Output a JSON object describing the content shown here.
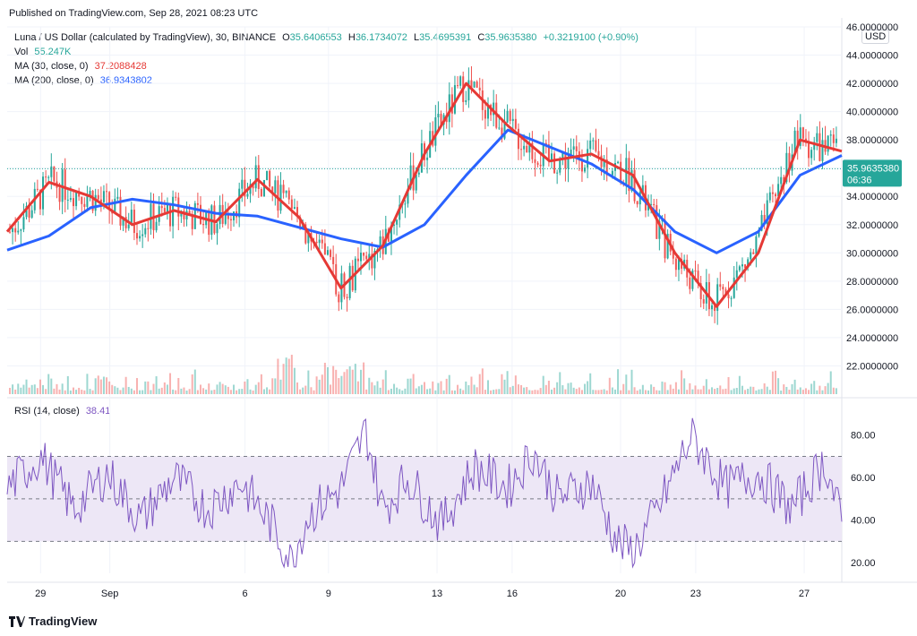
{
  "header": {
    "published": "Published on TradingView.com, Sep 28, 2021 08:23 UTC"
  },
  "legend": {
    "symbol": "Luna / US Dollar (calculated by TradingView), 30, BINANCE",
    "o_label": "O",
    "o": "35.6406553",
    "h_label": "H",
    "h": "36.1734072",
    "l_label": "L",
    "l": "35.4695391",
    "c_label": "C",
    "c": "35.9635380",
    "change": "+0.3219100 (+0.90%)",
    "vol_label": "Vol",
    "vol": "55.247K",
    "ma30_label": "MA (30, close, 0)",
    "ma30": "37.2088428",
    "ma200_label": "MA (200, close, 0)",
    "ma200": "36.9343802",
    "rsi_label": "RSI (14, close)",
    "rsi": "38.41"
  },
  "currency": "USD",
  "price_tag": {
    "value": "35.9635380",
    "countdown": "06:36"
  },
  "footer": {
    "brand": "TradingView"
  },
  "colors": {
    "up": "#26a69a",
    "down": "#ef5350",
    "ma30": "#e53935",
    "ma200": "#2962ff",
    "rsi": "#7e57c2",
    "rsi_band": "#ede7f6",
    "tag": "#26a69a"
  },
  "chart_data": [
    {
      "type": "line",
      "title": "Luna / US Dollar (calculated by TradingView), 30, BINANCE",
      "ylim": [
        20,
        46
      ],
      "y_ticks": [
        "46.0000000",
        "44.0000000",
        "42.0000000",
        "40.0000000",
        "38.0000000",
        "36.0000000",
        "34.0000000",
        "32.0000000",
        "30.0000000",
        "28.0000000",
        "26.0000000",
        "24.0000000",
        "22.0000000"
      ],
      "x_ticks": [
        "29",
        "Sep",
        "6",
        "9",
        "13",
        "16",
        "20",
        "23",
        "27"
      ],
      "series": [
        {
          "name": "MA (30, close, 0)",
          "x": [
            0,
            5,
            10,
            15,
            20,
            25,
            30,
            35,
            40,
            45,
            50,
            55,
            60,
            65,
            70,
            75,
            80,
            85,
            90,
            95,
            100
          ],
          "values": [
            31.5,
            35.0,
            34.0,
            32.0,
            33.0,
            32.2,
            35.2,
            32.5,
            27.5,
            30.5,
            37.0,
            42.0,
            39.0,
            36.5,
            37.0,
            35.5,
            30.0,
            26.2,
            30.0,
            38.0,
            37.2
          ]
        },
        {
          "name": "MA (200, close, 0)",
          "x": [
            0,
            5,
            10,
            15,
            20,
            25,
            30,
            35,
            40,
            45,
            50,
            55,
            60,
            65,
            70,
            75,
            80,
            85,
            90,
            95,
            100
          ],
          "values": [
            30.2,
            31.2,
            33.2,
            33.8,
            33.4,
            32.8,
            32.6,
            31.8,
            31.0,
            30.4,
            32.0,
            35.5,
            38.7,
            37.5,
            36.3,
            34.5,
            31.5,
            30.0,
            31.5,
            35.5,
            36.9
          ]
        }
      ]
    },
    {
      "type": "line",
      "title": "RSI (14, close)",
      "ylim": [
        15,
        90
      ],
      "y_ticks": [
        "80.00",
        "60.00",
        "40.00",
        "20.00"
      ],
      "series": [
        {
          "name": "RSI (14, close)",
          "x": [
            0,
            4,
            8,
            12,
            16,
            20,
            24,
            28,
            32,
            34,
            36,
            40,
            43,
            45,
            48,
            52,
            56,
            60,
            63,
            66,
            70,
            73,
            75,
            78,
            82,
            86,
            90,
            94,
            98,
            100
          ],
          "values": [
            55,
            70,
            45,
            62,
            40,
            60,
            45,
            58,
            36,
            20,
            42,
            55,
            82,
            45,
            60,
            38,
            65,
            55,
            72,
            50,
            58,
            30,
            25,
            45,
            80,
            55,
            62,
            45,
            68,
            38
          ]
        }
      ]
    }
  ]
}
